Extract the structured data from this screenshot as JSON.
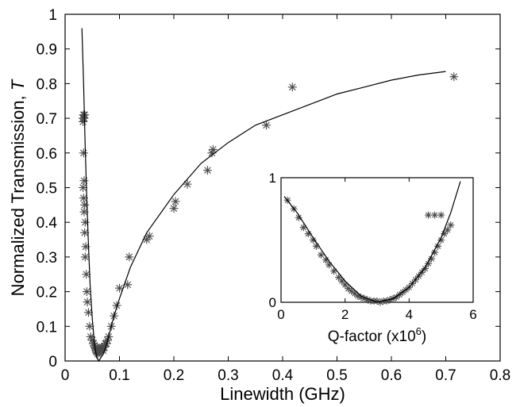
{
  "chart_data": [
    {
      "type": "scatter",
      "xlabel": "Linewidth (GHz)",
      "ylabel": "Normalized Transmission, ",
      "ylabel_symbol": "T",
      "xlim": [
        0,
        0.8
      ],
      "ylim": [
        0,
        1
      ],
      "xticks": [
        "0",
        "0.1",
        "0.2",
        "0.3",
        "0.4",
        "0.5",
        "0.6",
        "0.7",
        "0.8"
      ],
      "yticks": [
        "0",
        "0.1",
        "0.2",
        "0.3",
        "0.4",
        "0.5",
        "0.6",
        "0.7",
        "0.8",
        "0.9",
        "1"
      ],
      "grid": false,
      "marker": "asterisk",
      "marker_color": "#4a4a4a",
      "line_color": "#000000",
      "series": [
        {
          "kind": "points",
          "x": [
            0.033,
            0.034,
            0.035,
            0.033,
            0.036,
            0.034,
            0.035,
            0.033,
            0.034,
            0.036,
            0.035,
            0.037,
            0.036,
            0.038,
            0.037,
            0.039,
            0.04,
            0.041,
            0.043,
            0.045,
            0.047,
            0.05,
            0.052,
            0.054,
            0.055,
            0.056,
            0.057,
            0.058,
            0.059,
            0.06,
            0.061,
            0.062,
            0.063,
            0.064,
            0.065,
            0.066,
            0.067,
            0.068,
            0.069,
            0.07,
            0.072,
            0.074,
            0.076,
            0.078,
            0.08,
            0.085,
            0.09,
            0.095,
            0.1,
            0.115,
            0.118,
            0.15,
            0.155,
            0.2,
            0.203,
            0.225,
            0.262,
            0.27,
            0.272,
            0.37,
            0.418,
            0.715
          ],
          "y": [
            0.7,
            0.71,
            0.7,
            0.69,
            0.71,
            0.6,
            0.52,
            0.5,
            0.47,
            0.45,
            0.43,
            0.4,
            0.37,
            0.33,
            0.3,
            0.25,
            0.2,
            0.17,
            0.14,
            0.1,
            0.07,
            0.06,
            0.05,
            0.045,
            0.04,
            0.035,
            0.03,
            0.025,
            0.03,
            0.02,
            0.025,
            0.03,
            0.035,
            0.025,
            0.03,
            0.03,
            0.04,
            0.035,
            0.04,
            0.03,
            0.04,
            0.05,
            0.05,
            0.06,
            0.07,
            0.1,
            0.13,
            0.16,
            0.21,
            0.22,
            0.3,
            0.35,
            0.36,
            0.44,
            0.46,
            0.51,
            0.55,
            0.6,
            0.61,
            0.68,
            0.79,
            0.82
          ]
        },
        {
          "kind": "fit",
          "x": [
            0.031,
            0.034,
            0.037,
            0.04,
            0.043,
            0.046,
            0.05,
            0.054,
            0.058,
            0.062,
            0.066,
            0.07,
            0.075,
            0.08,
            0.09,
            0.1,
            0.12,
            0.15,
            0.2,
            0.25,
            0.3,
            0.35,
            0.4,
            0.45,
            0.5,
            0.55,
            0.6,
            0.65,
            0.7
          ],
          "y": [
            0.96,
            0.8,
            0.62,
            0.46,
            0.33,
            0.22,
            0.12,
            0.05,
            0.01,
            0.0,
            0.01,
            0.02,
            0.04,
            0.07,
            0.13,
            0.18,
            0.27,
            0.37,
            0.48,
            0.57,
            0.63,
            0.68,
            0.71,
            0.74,
            0.77,
            0.79,
            0.81,
            0.825,
            0.835
          ]
        }
      ]
    },
    {
      "type": "scatter",
      "role": "inset",
      "xlabel": "Q-factor (x10",
      "xlabel_sup": "6",
      "xlabel_end": ")",
      "xlim": [
        0,
        6
      ],
      "ylim": [
        0,
        1
      ],
      "xticks": [
        "0",
        "2",
        "4",
        "6"
      ],
      "yticks": [
        "0",
        "1"
      ],
      "grid": false,
      "marker": "asterisk",
      "marker_color": "#4a4a4a",
      "line_color": "#000000",
      "series": [
        {
          "kind": "points",
          "x": [
            0.2,
            0.4,
            0.55,
            0.7,
            0.85,
            1.0,
            1.1,
            1.25,
            1.4,
            1.5,
            1.65,
            1.8,
            1.9,
            2.0,
            2.1,
            2.2,
            2.3,
            2.4,
            2.5,
            2.6,
            2.7,
            2.8,
            2.9,
            3.0,
            3.1,
            3.2,
            3.3,
            3.4,
            3.5,
            3.6,
            3.7,
            3.8,
            3.9,
            4.0,
            4.1,
            4.2,
            4.3,
            4.4,
            4.5,
            4.6,
            4.7,
            4.8,
            4.9,
            5.0,
            5.1,
            5.2,
            5.3,
            4.6,
            4.8,
            5.0
          ],
          "y": [
            0.82,
            0.75,
            0.68,
            0.6,
            0.55,
            0.5,
            0.45,
            0.38,
            0.34,
            0.3,
            0.25,
            0.2,
            0.17,
            0.14,
            0.11,
            0.09,
            0.07,
            0.05,
            0.04,
            0.03,
            0.02,
            0.01,
            0.01,
            0.01,
            0.0,
            0.01,
            0.01,
            0.02,
            0.03,
            0.04,
            0.06,
            0.08,
            0.1,
            0.12,
            0.15,
            0.18,
            0.21,
            0.24,
            0.27,
            0.31,
            0.35,
            0.4,
            0.45,
            0.5,
            0.55,
            0.58,
            0.62,
            0.7,
            0.7,
            0.7
          ]
        },
        {
          "kind": "fit",
          "x": [
            0.1,
            0.5,
            1.0,
            1.5,
            2.0,
            2.5,
            3.0,
            3.5,
            4.0,
            4.5,
            5.0,
            5.3,
            5.6
          ],
          "y": [
            0.85,
            0.72,
            0.52,
            0.33,
            0.17,
            0.05,
            0.0,
            0.03,
            0.12,
            0.28,
            0.52,
            0.72,
            0.97
          ]
        }
      ]
    }
  ]
}
